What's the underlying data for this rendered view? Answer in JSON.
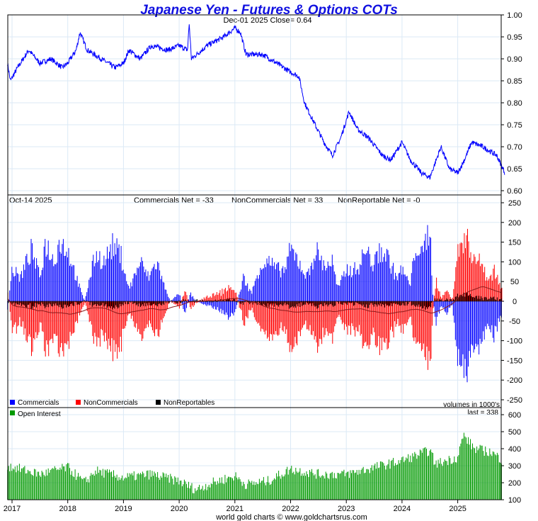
{
  "chart_data": [
    {
      "type": "line",
      "title": "Japanese Yen - Futures & Options COTs",
      "subtitle": "Dec-01  2025   Close= 0.64",
      "ylim": [
        0.6,
        1.0
      ],
      "yticks": [
        "1.00",
        "0.95",
        "0.90",
        "0.85",
        "0.80",
        "0.75",
        "0.70",
        "0.65",
        "0.60"
      ],
      "series": [
        {
          "name": "Price",
          "color": "#0000ff",
          "points": [
            [
              2016.92,
              0.89
            ],
            [
              2016.97,
              0.85
            ],
            [
              2017.1,
              0.88
            ],
            [
              2017.3,
              0.92
            ],
            [
              2017.5,
              0.89
            ],
            [
              2017.7,
              0.9
            ],
            [
              2017.9,
              0.88
            ],
            [
              2018.0,
              0.89
            ],
            [
              2018.15,
              0.92
            ],
            [
              2018.22,
              0.96
            ],
            [
              2018.35,
              0.92
            ],
            [
              2018.6,
              0.9
            ],
            [
              2018.85,
              0.88
            ],
            [
              2019.0,
              0.89
            ],
            [
              2019.1,
              0.92
            ],
            [
              2019.3,
              0.9
            ],
            [
              2019.5,
              0.93
            ],
            [
              2019.8,
              0.92
            ],
            [
              2020.0,
              0.93
            ],
            [
              2020.15,
              0.92
            ],
            [
              2020.18,
              0.98
            ],
            [
              2020.22,
              0.9
            ],
            [
              2020.5,
              0.93
            ],
            [
              2020.8,
              0.95
            ],
            [
              2021.0,
              0.97
            ],
            [
              2021.1,
              0.96
            ],
            [
              2021.2,
              0.91
            ],
            [
              2021.5,
              0.91
            ],
            [
              2021.75,
              0.89
            ],
            [
              2022.0,
              0.87
            ],
            [
              2022.15,
              0.86
            ],
            [
              2022.25,
              0.8
            ],
            [
              2022.4,
              0.76
            ],
            [
              2022.6,
              0.71
            ],
            [
              2022.75,
              0.68
            ],
            [
              2022.9,
              0.72
            ],
            [
              2023.05,
              0.78
            ],
            [
              2023.2,
              0.74
            ],
            [
              2023.4,
              0.72
            ],
            [
              2023.65,
              0.68
            ],
            [
              2023.8,
              0.67
            ],
            [
              2024.0,
              0.71
            ],
            [
              2024.15,
              0.67
            ],
            [
              2024.35,
              0.64
            ],
            [
              2024.5,
              0.63
            ],
            [
              2024.7,
              0.7
            ],
            [
              2024.85,
              0.65
            ],
            [
              2025.0,
              0.64
            ],
            [
              2025.12,
              0.67
            ],
            [
              2025.25,
              0.71
            ],
            [
              2025.45,
              0.7
            ],
            [
              2025.7,
              0.68
            ],
            [
              2025.85,
              0.64
            ]
          ]
        }
      ]
    },
    {
      "type": "bar",
      "header_date": "Oct-14  2025",
      "stats": [
        "Commercials Net = -33",
        "NonCommercials Net = 33",
        "NonReportable Net = -0"
      ],
      "ylim": [
        -250,
        250
      ],
      "yticks": [
        "250",
        "200",
        "150",
        "100",
        "50",
        "0",
        "-50",
        "-100",
        "-150",
        "-200",
        "-250"
      ],
      "legend": [
        "Commercials",
        "NonCommercials",
        "NonReportables"
      ],
      "legend_colors": [
        "#0000ff",
        "#ff0000",
        "#000000"
      ],
      "legend_position": "bottom-left",
      "note": "volumes in 1000's",
      "commercials_net": [
        [
          2016.92,
          -20
        ],
        [
          2017.0,
          80
        ],
        [
          2017.15,
          60
        ],
        [
          2017.35,
          130
        ],
        [
          2017.5,
          60
        ],
        [
          2017.6,
          150
        ],
        [
          2017.75,
          100
        ],
        [
          2017.85,
          150
        ],
        [
          2018.0,
          130
        ],
        [
          2018.2,
          40
        ],
        [
          2018.3,
          0
        ],
        [
          2018.4,
          60
        ],
        [
          2018.5,
          120
        ],
        [
          2018.65,
          100
        ],
        [
          2018.8,
          140
        ],
        [
          2018.95,
          120
        ],
        [
          2019.1,
          30
        ],
        [
          2019.3,
          100
        ],
        [
          2019.45,
          60
        ],
        [
          2019.6,
          100
        ],
        [
          2019.75,
          30
        ],
        [
          2019.85,
          0
        ],
        [
          2020.0,
          20
        ],
        [
          2020.1,
          -30
        ],
        [
          2020.2,
          20
        ],
        [
          2020.3,
          0
        ],
        [
          2020.5,
          -10
        ],
        [
          2020.7,
          -20
        ],
        [
          2020.9,
          -40
        ],
        [
          2021.0,
          -30
        ],
        [
          2021.15,
          60
        ],
        [
          2021.3,
          20
        ],
        [
          2021.45,
          90
        ],
        [
          2021.6,
          100
        ],
        [
          2021.75,
          80
        ],
        [
          2021.9,
          80
        ],
        [
          2022.0,
          130
        ],
        [
          2022.15,
          100
        ],
        [
          2022.3,
          60
        ],
        [
          2022.45,
          130
        ],
        [
          2022.6,
          90
        ],
        [
          2022.75,
          100
        ],
        [
          2022.85,
          30
        ],
        [
          2023.0,
          80
        ],
        [
          2023.2,
          80
        ],
        [
          2023.35,
          130
        ],
        [
          2023.5,
          90
        ],
        [
          2023.6,
          130
        ],
        [
          2023.75,
          110
        ],
        [
          2023.9,
          60
        ],
        [
          2024.0,
          80
        ],
        [
          2024.15,
          40
        ],
        [
          2024.25,
          150
        ],
        [
          2024.35,
          110
        ],
        [
          2024.5,
          190
        ],
        [
          2024.55,
          30
        ],
        [
          2024.6,
          -60
        ],
        [
          2024.7,
          -10
        ],
        [
          2024.8,
          -30
        ],
        [
          2024.9,
          -10
        ],
        [
          2025.0,
          -140
        ],
        [
          2025.1,
          -180
        ],
        [
          2025.2,
          -160
        ],
        [
          2025.3,
          -120
        ],
        [
          2025.45,
          -100
        ],
        [
          2025.55,
          -60
        ],
        [
          2025.65,
          -90
        ],
        [
          2025.78,
          -33
        ]
      ]
    },
    {
      "type": "bar",
      "legend": [
        "Open Interest"
      ],
      "legend_colors": [
        "#009900"
      ],
      "last": "last = 338",
      "ylim": [
        100,
        600
      ],
      "yticks": [
        "600",
        "500",
        "400",
        "300",
        "200",
        "100"
      ],
      "open_interest": [
        [
          2016.92,
          300
        ],
        [
          2017.5,
          250
        ],
        [
          2018.0,
          290
        ],
        [
          2018.3,
          200
        ],
        [
          2018.5,
          270
        ],
        [
          2019.0,
          230
        ],
        [
          2019.5,
          250
        ],
        [
          2020.0,
          210
        ],
        [
          2020.3,
          160
        ],
        [
          2020.6,
          200
        ],
        [
          2021.0,
          240
        ],
        [
          2021.2,
          190
        ],
        [
          2021.6,
          210
        ],
        [
          2022.0,
          280
        ],
        [
          2022.5,
          250
        ],
        [
          2023.0,
          250
        ],
        [
          2023.5,
          290
        ],
        [
          2024.0,
          330
        ],
        [
          2024.5,
          390
        ],
        [
          2024.6,
          310
        ],
        [
          2025.0,
          350
        ],
        [
          2025.1,
          480
        ],
        [
          2025.3,
          400
        ],
        [
          2025.6,
          380
        ],
        [
          2025.78,
          338
        ]
      ]
    }
  ],
  "xaxis": {
    "ticks": [
      "2017",
      "2018",
      "2019",
      "2020",
      "2021",
      "2022",
      "2023",
      "2024",
      "2025"
    ]
  },
  "footer": "world gold charts © www.goldchartsrus.com"
}
